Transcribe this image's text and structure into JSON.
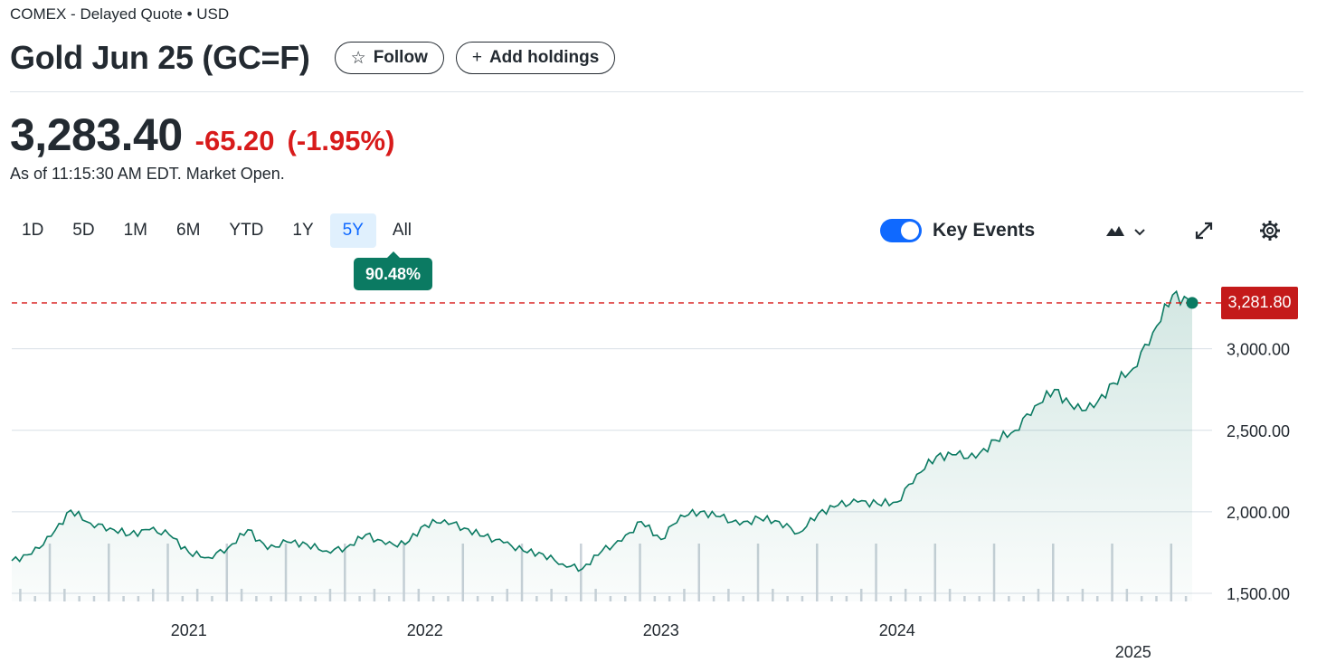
{
  "header": {
    "exchange_line": "COMEX - Delayed Quote • USD",
    "title": "Gold Jun 25 (GC=F)",
    "follow_label": "Follow",
    "add_holdings_label": "Add holdings"
  },
  "quote": {
    "price": "3,283.40",
    "change": "-65.20",
    "change_pct": "(-1.95%)",
    "as_of": "As of 11:15:30 AM EDT. Market Open."
  },
  "range_tabs": [
    "1D",
    "5D",
    "1M",
    "6M",
    "YTD",
    "1Y",
    "5Y",
    "All"
  ],
  "active_range": "5Y",
  "range_change": "90.48%",
  "key_events": {
    "label": "Key Events",
    "enabled": true
  },
  "toolbar_icons": [
    "mountain-chart-icon",
    "chevron-down-icon",
    "expand-icon",
    "gear-icon"
  ],
  "colors": {
    "line": "#0b7a62",
    "negative": "#d81b1b",
    "accent": "#0f69ff",
    "tag": "#c41a1a"
  },
  "chart_data": {
    "type": "area",
    "series": [
      {
        "x": [
          "2020-05",
          "2020-06",
          "2020-07",
          "2020-08",
          "2020-09",
          "2020-10",
          "2020-11",
          "2020-12",
          "2021-01",
          "2021-02",
          "2021-03",
          "2021-04",
          "2021-05",
          "2021-06",
          "2021-07",
          "2021-08",
          "2021-09",
          "2021-10",
          "2021-11",
          "2021-12",
          "2022-01",
          "2022-02",
          "2022-03",
          "2022-04",
          "2022-05",
          "2022-06",
          "2022-07",
          "2022-08",
          "2022-09",
          "2022-10",
          "2022-11",
          "2022-12",
          "2023-01",
          "2023-02",
          "2023-03",
          "2023-04",
          "2023-05",
          "2023-06",
          "2023-07",
          "2023-08",
          "2023-09",
          "2023-10",
          "2023-11",
          "2023-12",
          "2024-01",
          "2024-02",
          "2024-03",
          "2024-04",
          "2024-05",
          "2024-06",
          "2024-07",
          "2024-08",
          "2024-09",
          "2024-10",
          "2024-11",
          "2024-12",
          "2025-01",
          "2025-02",
          "2025-03",
          "2025-04",
          "2025-05"
        ],
        "values": [
          1700,
          1740,
          1850,
          2010,
          1930,
          1900,
          1860,
          1890,
          1860,
          1750,
          1720,
          1780,
          1890,
          1770,
          1815,
          1800,
          1760,
          1780,
          1860,
          1800,
          1800,
          1920,
          1950,
          1900,
          1850,
          1810,
          1760,
          1740,
          1680,
          1650,
          1760,
          1820,
          1940,
          1830,
          1980,
          2000,
          1970,
          1920,
          1960,
          1940,
          1870,
          1990,
          2040,
          2060,
          2050,
          2060,
          2230,
          2340,
          2350,
          2330,
          2440,
          2500,
          2650,
          2750,
          2630,
          2640,
          2790,
          2880,
          3100,
          3330,
          3282
        ]
      }
    ],
    "ylim": [
      1450,
      3420
    ],
    "yticks": [
      "1,500.00",
      "2,000.00",
      "2,500.00",
      "3,000.00"
    ],
    "xticks": [
      "2021",
      "2022",
      "2023",
      "2024",
      "2025"
    ],
    "last_value": 3281.8,
    "last_label": "3,281.80",
    "volume_bars": true,
    "grid": true
  }
}
